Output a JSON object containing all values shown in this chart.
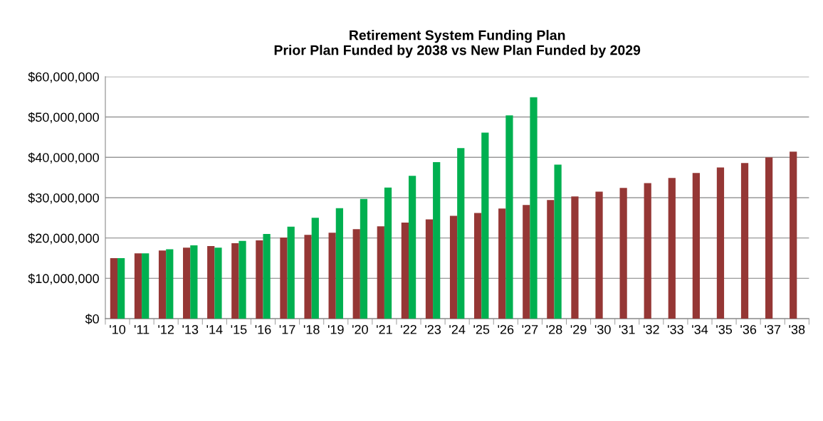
{
  "chart_data": {
    "type": "bar",
    "title": "Retirement System Funding Plan\nPrior Plan Funded by 2038 vs New Plan Funded by 2029",
    "categories": [
      "'10",
      "'11",
      "'12",
      "'13",
      "'14",
      "'15",
      "'16",
      "'17",
      "'18",
      "'19",
      "'20",
      "'21",
      "'22",
      "'23",
      "'24",
      "'25",
      "'26",
      "'27",
      "'28",
      "'29",
      "'30",
      "'31",
      "'32",
      "'33",
      "'34",
      "'35",
      "'36",
      "'37",
      "'38"
    ],
    "series": [
      {
        "color": "#953735",
        "values": [
          15000000,
          16200000,
          16900000,
          17600000,
          18000000,
          18700000,
          19400000,
          20100000,
          20800000,
          21300000,
          22200000,
          22900000,
          23800000,
          24600000,
          25500000,
          26200000,
          27300000,
          28200000,
          29400000,
          30300000,
          31500000,
          32400000,
          33600000,
          34900000,
          36100000,
          37500000,
          38600000,
          40000000,
          41400000
        ]
      },
      {
        "color": "#00b050",
        "values": [
          15000000,
          16200000,
          17200000,
          18200000,
          17600000,
          19300000,
          21000000,
          22800000,
          25000000,
          27400000,
          29700000,
          32500000,
          35400000,
          38800000,
          42300000,
          46100000,
          50400000,
          54900000,
          38200000,
          null,
          null,
          null,
          null,
          null,
          null,
          null,
          null,
          null,
          null
        ]
      }
    ],
    "ylim": [
      0,
      60000000
    ],
    "yticks": [
      {
        "value": 0,
        "label": "$0"
      },
      {
        "value": 10000000,
        "label": "$10,000,000"
      },
      {
        "value": 20000000,
        "label": "$20,000,000"
      },
      {
        "value": 30000000,
        "label": "$30,000,000"
      },
      {
        "value": 40000000,
        "label": "$40,000,000"
      },
      {
        "value": 50000000,
        "label": "$50,000,000"
      },
      {
        "value": 60000000,
        "label": "$60,000,000"
      }
    ],
    "grid": "y"
  }
}
